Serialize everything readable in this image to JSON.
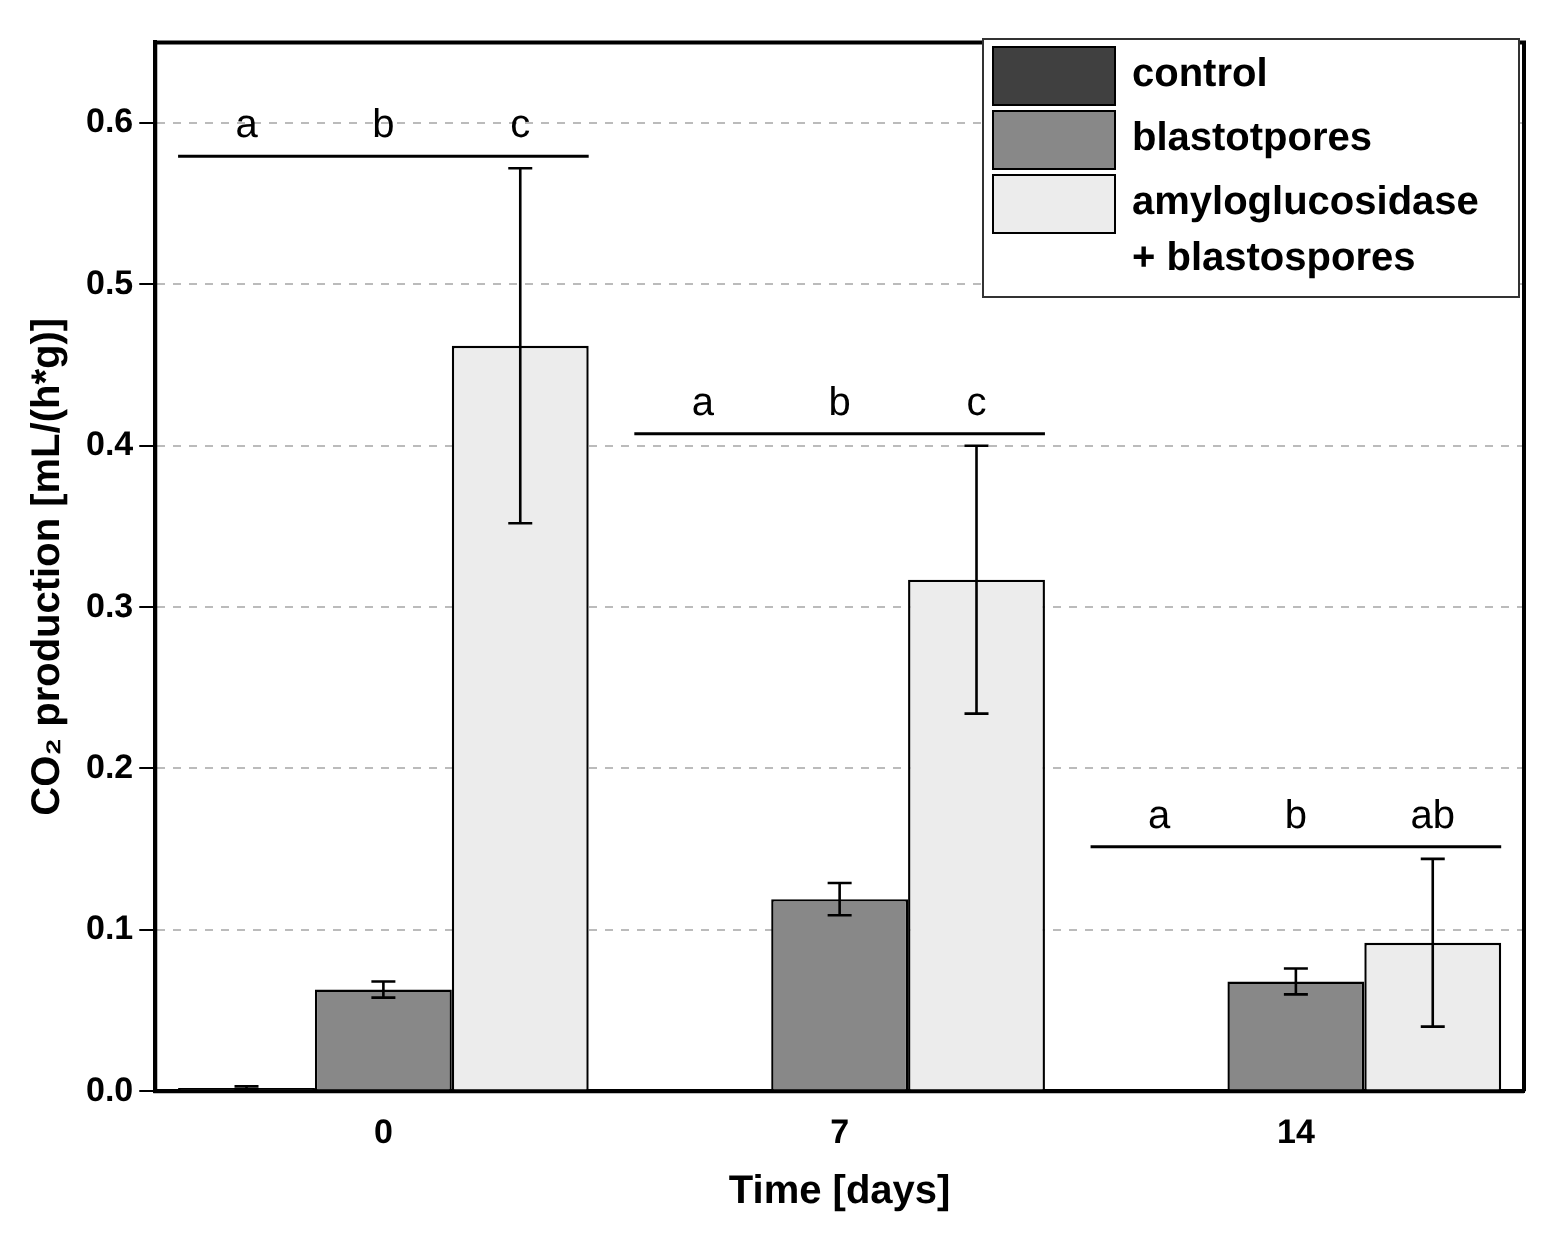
{
  "chart_data": {
    "type": "bar",
    "xlabel": "Time [days]",
    "ylabel": "CO₂ production [mL/(h*g)]",
    "categories": [
      "0",
      "7",
      "14"
    ],
    "series": [
      {
        "name": "control",
        "color": "#404040",
        "values": [
          0.002,
          0,
          0
        ],
        "errors": [
          0.001,
          null,
          null
        ]
      },
      {
        "name": "blastotpores",
        "color": "#888888",
        "values": [
          0.063,
          0.119,
          0.068
        ],
        "errors": [
          0.005,
          0.01,
          0.008
        ]
      },
      {
        "name": "amyloglucosidase + blastospores",
        "color": "#ececec",
        "values": [
          0.462,
          0.317,
          0.092
        ],
        "errors": [
          0.11,
          0.083,
          0.052
        ]
      }
    ],
    "ylim": [
      0,
      0.65
    ],
    "yticks": [
      {
        "value": 0,
        "label": "0.0"
      },
      0.1,
      0.2,
      0.3,
      0.4,
      0.5,
      0.6
    ],
    "grid": "y",
    "legend": "top right",
    "annotations": [
      "a",
      "b",
      "c",
      "a",
      "b",
      "c",
      "a",
      "b",
      "ab"
    ]
  }
}
